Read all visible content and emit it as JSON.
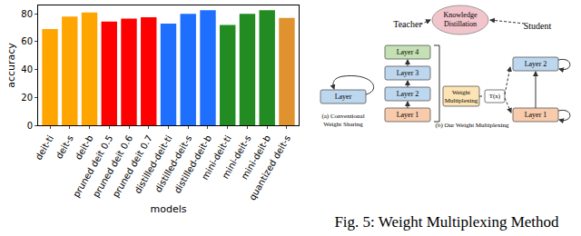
{
  "chart_data": {
    "type": "bar",
    "x_label": "models",
    "y_label": "accuracy",
    "categories": [
      "deit-ti",
      "deit-s",
      "deit-b",
      "pruned deit 0.5",
      "pruned deit 0.6",
      "pruned deit 0.7",
      "distilled-deit-ti",
      "distilled-deit-s",
      "distilled-deit-b",
      "mini-deit-ti",
      "mini-deit-s",
      "mini-deit-b",
      "quantized deit-s"
    ],
    "values": [
      69,
      78,
      81,
      74.5,
      76.5,
      77.5,
      73,
      80,
      82.5,
      72,
      80,
      82.5,
      77
    ],
    "colors": [
      "#ffa500",
      "#ffa500",
      "#ffa500",
      "#ff0000",
      "#ff0000",
      "#ff0000",
      "#1f6fff",
      "#1f6fff",
      "#1f6fff",
      "#228b22",
      "#228b22",
      "#228b22",
      "#e0922f"
    ],
    "ylim": [
      0,
      86
    ],
    "yticks": [
      0,
      20,
      40,
      60,
      80
    ],
    "grid": false
  },
  "diagram": {
    "caption": "Fig. 5: Weight Multiplexing Method",
    "panel_a": {
      "layer": "Layer",
      "label": [
        "(a) Conventional",
        "Weight Sharing"
      ]
    },
    "panel_b": {
      "teacher": "Teacher",
      "student": "Student",
      "distillation": [
        "Knowledge",
        "Distillation"
      ],
      "teacher_layers": [
        "Layer 4",
        "Layer 3",
        "Layer 2",
        "Layer 1"
      ],
      "student_layers": [
        "Layer 2",
        "Layer 1"
      ],
      "multiplexing": [
        "Weight",
        "Multiplexing"
      ],
      "transform": "T(x)",
      "label": "(b) Our Weight Multiplexing"
    }
  }
}
